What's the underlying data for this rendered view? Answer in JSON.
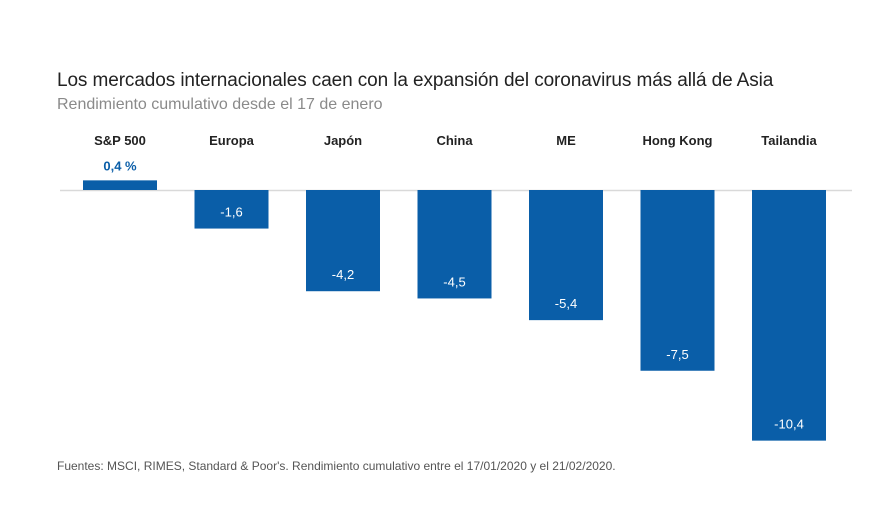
{
  "chart_data": {
    "type": "bar",
    "title": "Los mercados internacionales caen con la expansión del coronavirus más allá de Asia",
    "subtitle": "Rendimiento cumulativo desde el 17 de enero",
    "categories": [
      "S&P 500",
      "Europa",
      "Japón",
      "China",
      "ME",
      "Hong Kong",
      "Tailandia"
    ],
    "values": [
      0.4,
      -1.6,
      -4.2,
      -4.5,
      -5.4,
      -7.5,
      -10.4
    ],
    "data_labels": [
      "0,4 %",
      "-1,6",
      "-4,2",
      "-4,5",
      "-5,4",
      "-7,5",
      "-10,4"
    ],
    "ylabel": "",
    "xlabel": "",
    "ylim": [
      -10.4,
      0.4
    ],
    "grid": false,
    "legend": "none",
    "source": "Fuentes: MSCI, RIMES, Standard & Poor's. Rendimiento cumulativo entre el 17/01/2020 y el 21/02/2020.",
    "colors": {
      "bar": "#0a5ea8",
      "positive_label": "#0a5ea8",
      "axis": "#d9d9d9",
      "category_label": "#222222"
    }
  }
}
